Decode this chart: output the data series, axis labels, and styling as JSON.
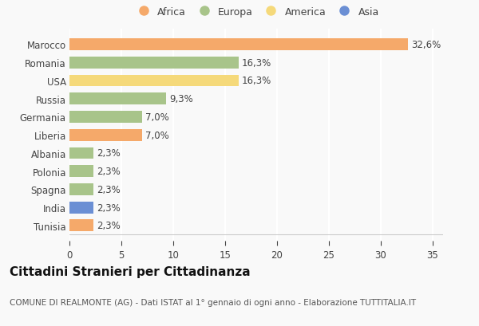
{
  "countries": [
    "Tunisia",
    "India",
    "Spagna",
    "Polonia",
    "Albania",
    "Liberia",
    "Germania",
    "Russia",
    "USA",
    "Romania",
    "Marocco"
  ],
  "values": [
    2.3,
    2.3,
    2.3,
    2.3,
    2.3,
    7.0,
    7.0,
    9.3,
    16.3,
    16.3,
    32.6
  ],
  "labels": [
    "2,3%",
    "2,3%",
    "2,3%",
    "2,3%",
    "2,3%",
    "7,0%",
    "7,0%",
    "9,3%",
    "16,3%",
    "16,3%",
    "32,6%"
  ],
  "colors": [
    "#F5A96A",
    "#6B8FD4",
    "#A8C48A",
    "#A8C48A",
    "#A8C48A",
    "#F5A96A",
    "#A8C48A",
    "#A8C48A",
    "#F5D97A",
    "#A8C48A",
    "#F5A96A"
  ],
  "continent_colors": {
    "Africa": "#F5A96A",
    "Europa": "#A8C48A",
    "America": "#F5D97A",
    "Asia": "#6B8FD4"
  },
  "legend_labels": [
    "Africa",
    "Europa",
    "America",
    "Asia"
  ],
  "title": "Cittadini Stranieri per Cittadinanza",
  "subtitle": "COMUNE DI REALMONTE (AG) - Dati ISTAT al 1° gennaio di ogni anno - Elaborazione TUTTITALIA.IT",
  "xlim": [
    0,
    36
  ],
  "xticks": [
    0,
    5,
    10,
    15,
    20,
    25,
    30,
    35
  ],
  "background_color": "#f9f9f9",
  "bar_height": 0.65,
  "title_fontsize": 11,
  "subtitle_fontsize": 7.5,
  "label_fontsize": 8.5,
  "tick_fontsize": 8.5,
  "legend_fontsize": 9
}
